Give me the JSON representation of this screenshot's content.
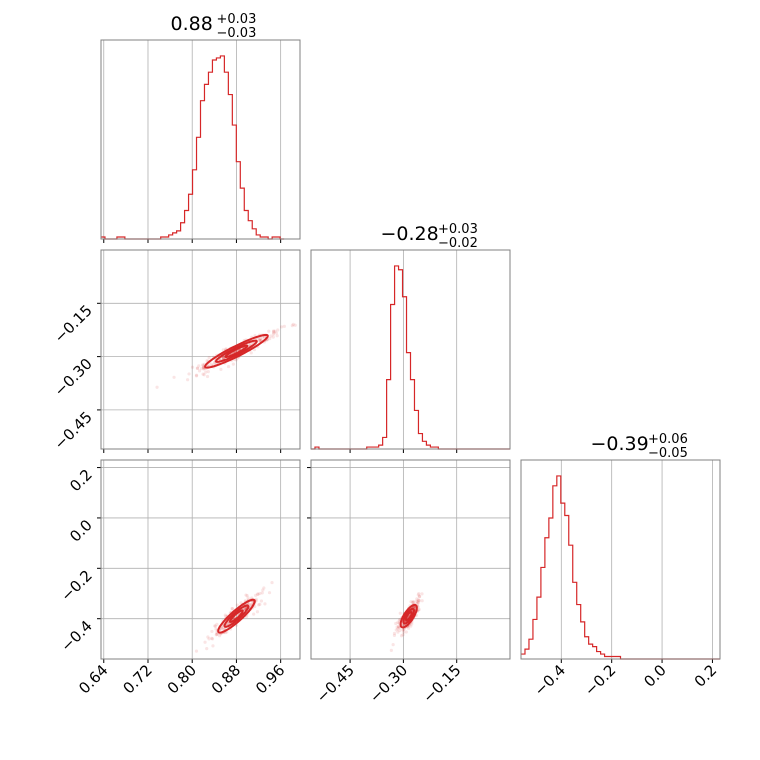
{
  "chart_data": {
    "type": "corner",
    "color": "#d62728",
    "params": [
      {
        "median": 0.88,
        "plus": 0.03,
        "minus": 0.03,
        "lim": [
          0.635,
          0.995
        ],
        "ticks": [
          0.64,
          0.72,
          0.8,
          0.88,
          0.96
        ],
        "ticklabels": [
          "0.64",
          "0.72",
          "0.80",
          "0.88",
          "0.96"
        ]
      },
      {
        "median": -0.28,
        "plus": 0.03,
        "minus": 0.02,
        "lim": [
          -0.56,
          0.0
        ],
        "ticks": [
          -0.45,
          -0.3,
          -0.15
        ],
        "ticklabels": [
          "−0.45",
          "−0.30",
          "−0.15"
        ]
      },
      {
        "median": -0.39,
        "plus": 0.06,
        "minus": 0.05,
        "lim": [
          -0.56,
          0.23
        ],
        "ticks": [
          -0.4,
          -0.2,
          0.0,
          0.2
        ],
        "ticklabels": [
          "−0.4",
          "−0.2",
          "0.0",
          "0.2"
        ]
      }
    ],
    "titles": [
      {
        "main": "0.88",
        "sup": "+0.03",
        "sub": "−0.03"
      },
      {
        "main": "−0.28",
        "sup": "+0.03",
        "sub": "−0.02"
      },
      {
        "main": "−0.39",
        "sup": "+0.06",
        "sub": "−0.05"
      }
    ],
    "histograms": [
      {
        "bin_width": 0.0072,
        "x_start": 0.635,
        "counts": [
          1,
          0,
          0,
          0,
          1,
          1,
          0,
          0,
          0,
          0,
          0,
          0,
          0,
          0,
          0,
          1,
          1,
          2,
          3,
          4,
          8,
          14,
          22,
          34,
          50,
          68,
          76,
          82,
          88,
          89,
          90,
          82,
          71,
          56,
          38,
          25,
          14,
          9,
          5,
          2,
          1,
          1,
          0,
          1,
          1,
          0
        ]
      },
      {
        "bin_width": 0.0112,
        "x_start": -0.56,
        "counts": [
          0,
          1,
          0,
          0,
          0,
          0,
          0,
          0,
          0,
          0,
          0,
          0,
          0,
          0,
          1,
          1,
          1,
          2,
          6,
          36,
          75,
          95,
          93,
          79,
          50,
          36,
          20,
          8,
          4,
          2,
          1,
          1,
          0,
          0,
          0,
          0,
          0,
          0,
          0,
          0,
          0,
          0,
          0,
          0,
          0,
          0,
          0,
          0,
          0,
          0
        ]
      },
      {
        "bin_width": 0.0158,
        "x_start": -0.56,
        "counts": [
          2,
          4,
          8,
          16,
          25,
          37,
          49,
          57,
          70,
          74,
          63,
          58,
          46,
          31,
          22,
          15,
          9,
          6,
          5,
          3,
          2,
          1,
          1,
          1,
          1,
          0,
          0,
          0,
          0,
          0,
          0,
          0,
          0,
          0,
          0,
          0,
          0,
          0,
          0,
          0,
          0,
          0,
          0,
          0,
          0,
          0,
          0,
          0,
          0,
          0
        ]
      }
    ],
    "scatter_2d": [
      {
        "x_param": 0,
        "y_param": 1,
        "center": [
          0.88,
          -0.285
        ],
        "slope": 0.8,
        "spread_major": 0.045,
        "spread_minor": 0.008
      },
      {
        "x_param": 0,
        "y_param": 2,
        "center": [
          0.88,
          -0.39
        ],
        "slope": 2.1,
        "spread_major": 0.045,
        "spread_minor": 0.008
      },
      {
        "x_param": 1,
        "y_param": 2,
        "center": [
          -0.285,
          -0.39
        ],
        "slope": 2.4,
        "spread_major": 0.03,
        "spread_minor": 0.009
      }
    ]
  }
}
